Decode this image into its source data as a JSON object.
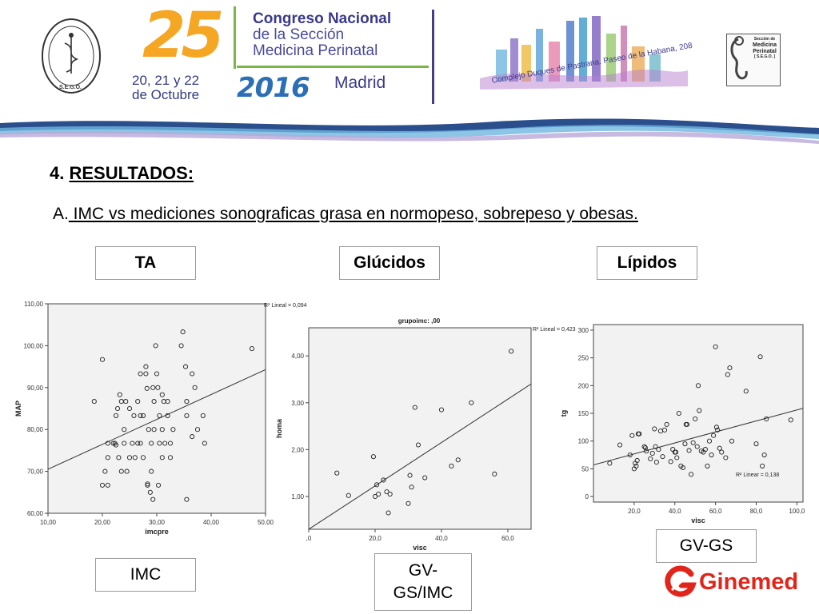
{
  "banner": {
    "edition": "25",
    "congress_line1": "Congreso Nacional",
    "congress_line2": "de la Sección",
    "congress_line3": "Medicina Perinatal",
    "dates_line1": "20, 21 y 22",
    "dates_line2": "de Octubre",
    "year": "2016",
    "city": "Madrid",
    "venue": "Complejo Duques de Pastrana. Paseo de la Habana, 208",
    "left_logo_text": "S.E.G.O.",
    "right_logo_line1": "Sección de",
    "right_logo_line2": "Medicina",
    "right_logo_line3": "Perinatal",
    "right_logo_line4": "[ S.E.G.O. ]",
    "colors": {
      "purple": "#3b2e8a",
      "orange": "#f5a623",
      "blue": "#2b6fb6",
      "green": "#7ab648"
    }
  },
  "section": {
    "number": "4.",
    "title": "RESULTADOS:",
    "subtitle_prefix": "A.",
    "subtitle": " IMC vs mediciones sonograficas grasa en normopeso, sobrepeso y obesas."
  },
  "category_labels": [
    "TA",
    "Glúcidos",
    "Lípidos"
  ],
  "axis_labels": [
    "IMC",
    "GV-GS/IMC",
    "GV-GS"
  ],
  "brand": {
    "name": "Ginemed",
    "color": "#e1251b"
  },
  "chart_data": [
    {
      "type": "scatter",
      "title": "",
      "xlabel": "imcpre",
      "ylabel": "MAP",
      "xlim": [
        10,
        50
      ],
      "ylim": [
        60,
        110
      ],
      "xticks": [
        "10,00",
        "20,00",
        "30,00",
        "40,00",
        "50,00"
      ],
      "yticks": [
        "60,00",
        "70,00",
        "80,00",
        "90,00",
        "100,00",
        "110,00"
      ],
      "fit_label": "R² Lineal = 0,094",
      "fit_line": {
        "x": [
          10,
          50
        ],
        "y": [
          70.5,
          94.3
        ]
      },
      "points": [
        [
          18.5,
          86.7
        ],
        [
          20,
          96.7
        ],
        [
          20,
          66.7
        ],
        [
          21,
          66.7
        ],
        [
          20.5,
          70
        ],
        [
          21,
          73.3
        ],
        [
          21,
          76.7
        ],
        [
          22,
          76.7
        ],
        [
          22.3,
          76.7
        ],
        [
          22.5,
          76.3
        ],
        [
          23,
          73.3
        ],
        [
          22.5,
          83.3
        ],
        [
          22.8,
          85
        ],
        [
          23.5,
          86.7
        ],
        [
          23.2,
          88.3
        ],
        [
          23.5,
          70
        ],
        [
          24,
          80
        ],
        [
          24,
          76.7
        ],
        [
          24.5,
          70
        ],
        [
          24.3,
          86.7
        ],
        [
          25,
          85
        ],
        [
          25,
          73.3
        ],
        [
          25.5,
          76.7
        ],
        [
          25.8,
          83.3
        ],
        [
          26,
          73.3
        ],
        [
          26.5,
          76.7
        ],
        [
          26.5,
          86.7
        ],
        [
          27,
          76.7
        ],
        [
          27,
          83.3
        ],
        [
          27,
          93.3
        ],
        [
          27.5,
          73.3
        ],
        [
          27.5,
          83.3
        ],
        [
          28,
          95
        ],
        [
          28.2,
          89.8
        ],
        [
          28,
          93.3
        ],
        [
          28.3,
          66.7
        ],
        [
          28.3,
          67
        ],
        [
          28.5,
          80
        ],
        [
          28.8,
          65
        ],
        [
          29,
          76.7
        ],
        [
          29,
          70
        ],
        [
          29.3,
          63.3
        ],
        [
          29.3,
          90
        ],
        [
          29.5,
          80
        ],
        [
          29.5,
          86.7
        ],
        [
          29.8,
          100
        ],
        [
          30,
          93.3
        ],
        [
          30.2,
          90
        ],
        [
          30.3,
          66.7
        ],
        [
          30.5,
          76.7
        ],
        [
          30.5,
          83.3
        ],
        [
          31,
          88.3
        ],
        [
          31,
          73.3
        ],
        [
          31,
          80
        ],
        [
          31.3,
          86.7
        ],
        [
          31.5,
          76.7
        ],
        [
          32,
          83.3
        ],
        [
          32,
          86.7
        ],
        [
          32.5,
          73.3
        ],
        [
          32.5,
          76.7
        ],
        [
          33,
          80
        ],
        [
          34.5,
          100
        ],
        [
          34.8,
          103.3
        ],
        [
          35.3,
          95
        ],
        [
          35.5,
          63.3
        ],
        [
          35.5,
          86.7
        ],
        [
          35.5,
          83.3
        ],
        [
          36.5,
          93.3
        ],
        [
          36.5,
          78.3
        ],
        [
          37,
          90
        ],
        [
          37.5,
          80
        ],
        [
          38.5,
          83.3
        ],
        [
          38.8,
          76.7
        ],
        [
          47.5,
          99.3
        ]
      ]
    },
    {
      "type": "scatter",
      "title": "grupoimc: ,00",
      "xlabel": "visc",
      "ylabel": "homa",
      "xlim": [
        0,
        67
      ],
      "ylim": [
        0.3,
        4.6
      ],
      "xticks": [
        ",0",
        "20,0",
        "40,0",
        "60,0"
      ],
      "yticks": [
        "1,00",
        "2,00",
        "3,00",
        "4,00"
      ],
      "fit_label": "R² Lineal = 0,423",
      "fit_line": {
        "x": [
          0,
          67
        ],
        "y": [
          0.3,
          3.4
        ]
      },
      "points": [
        [
          8.5,
          1.5
        ],
        [
          12,
          1.02
        ],
        [
          19.5,
          1.85
        ],
        [
          20,
          1.0
        ],
        [
          20.5,
          1.25
        ],
        [
          21,
          1.05
        ],
        [
          22.5,
          1.35
        ],
        [
          23.5,
          1.1
        ],
        [
          24,
          0.65
        ],
        [
          24.5,
          1.05
        ],
        [
          30,
          0.85
        ],
        [
          30.5,
          1.45
        ],
        [
          31,
          1.2
        ],
        [
          32,
          2.9
        ],
        [
          33,
          2.1
        ],
        [
          35,
          1.4
        ],
        [
          40,
          2.85
        ],
        [
          43,
          1.65
        ],
        [
          45,
          1.78
        ],
        [
          49,
          3.0
        ],
        [
          56,
          1.48
        ],
        [
          61,
          4.1
        ]
      ]
    },
    {
      "type": "scatter",
      "title": "",
      "xlabel": "visc",
      "ylabel": "tg",
      "xlim": [
        0,
        103
      ],
      "ylim": [
        -10,
        310
      ],
      "xticks": [
        "20,0",
        "40,0",
        "60,0",
        "80,0",
        "100,0"
      ],
      "yticks": [
        "0",
        "50",
        "100",
        "150",
        "200",
        "250",
        "300"
      ],
      "fit_label": "R² Linear = 0,138",
      "fit_line": {
        "x": [
          0,
          103
        ],
        "y": [
          57,
          159
        ]
      },
      "points": [
        [
          8,
          60
        ],
        [
          13,
          93
        ],
        [
          18,
          75
        ],
        [
          19,
          110
        ],
        [
          20,
          50
        ],
        [
          20.5,
          60
        ],
        [
          21,
          55
        ],
        [
          21.5,
          65
        ],
        [
          22,
          113
        ],
        [
          22.5,
          113
        ],
        [
          25,
          90
        ],
        [
          25.5,
          88
        ],
        [
          26,
          82
        ],
        [
          28,
          68
        ],
        [
          29,
          78
        ],
        [
          30,
          122
        ],
        [
          30.5,
          90
        ],
        [
          31,
          62
        ],
        [
          32,
          85
        ],
        [
          33,
          118
        ],
        [
          34,
          72
        ],
        [
          35,
          120
        ],
        [
          36,
          130
        ],
        [
          38,
          63
        ],
        [
          39,
          85
        ],
        [
          40,
          80
        ],
        [
          40.5,
          80
        ],
        [
          41,
          70
        ],
        [
          42,
          150
        ],
        [
          43,
          55
        ],
        [
          44,
          52
        ],
        [
          45,
          95
        ],
        [
          45.5,
          130
        ],
        [
          46,
          130
        ],
        [
          47,
          83
        ],
        [
          48,
          40
        ],
        [
          49,
          97
        ],
        [
          50,
          140
        ],
        [
          51,
          90
        ],
        [
          51.5,
          200
        ],
        [
          52,
          155
        ],
        [
          53,
          82
        ],
        [
          54,
          80
        ],
        [
          55,
          85
        ],
        [
          56,
          55
        ],
        [
          57,
          100
        ],
        [
          58,
          75
        ],
        [
          59,
          110
        ],
        [
          60,
          270
        ],
        [
          60.5,
          125
        ],
        [
          61,
          120
        ],
        [
          62,
          87
        ],
        [
          63,
          80
        ],
        [
          65,
          70
        ],
        [
          66,
          220
        ],
        [
          67,
          232
        ],
        [
          68,
          100
        ],
        [
          75,
          190
        ],
        [
          80,
          95
        ],
        [
          82,
          252
        ],
        [
          83,
          55
        ],
        [
          84,
          75
        ],
        [
          85,
          140
        ],
        [
          97,
          138
        ]
      ]
    }
  ]
}
